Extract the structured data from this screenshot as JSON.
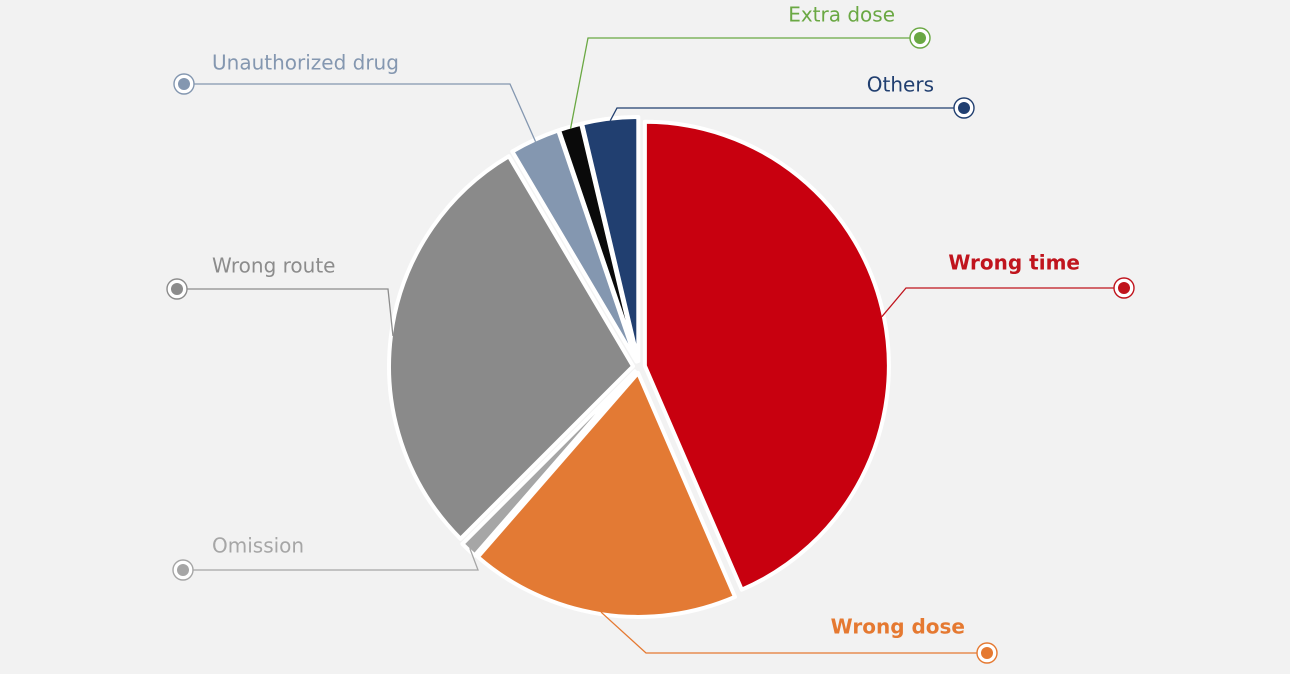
{
  "chart_data": {
    "type": "pie",
    "title": "",
    "slices": [
      {
        "label": "Wrong time",
        "value": 43.5,
        "color": "#c8000f",
        "label_color": "#c0141d",
        "bold": true
      },
      {
        "label": "Wrong dose",
        "value": 17.9,
        "color": "#e37a34",
        "label_color": "#e57931",
        "bold": true
      },
      {
        "label": "Omission",
        "value": 1.1,
        "color": "#a6a6a6",
        "label_color": "#a6a6a6",
        "bold": false
      },
      {
        "label": "Wrong route",
        "value": 29.0,
        "color": "#8a8a8a",
        "label_color": "#8c8c8c",
        "bold": false
      },
      {
        "label": "Unauthorized drug",
        "value": 3.3,
        "color": "#8497b0",
        "label_color": "#8497b0",
        "bold": false
      },
      {
        "label": "Extra dose",
        "value": 1.5,
        "color": "#0a0a0a",
        "label_color": "#6aa843",
        "bold": false
      },
      {
        "label": "Others",
        "value": 3.7,
        "color": "#213f70",
        "label_color": "#213f70",
        "bold": false
      }
    ]
  }
}
